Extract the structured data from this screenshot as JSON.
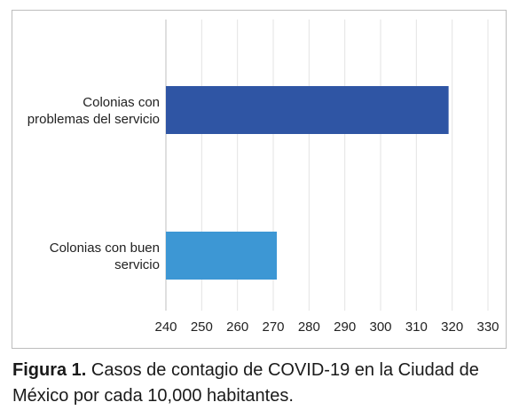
{
  "chart_data": {
    "type": "bar",
    "orientation": "horizontal",
    "categories": [
      [
        "Colonias con",
        "problemas del servicio"
      ],
      [
        "Colonias con buen",
        "servicio"
      ]
    ],
    "values": [
      319,
      271
    ],
    "colors": [
      "#2f55a4",
      "#3d97d4"
    ],
    "xlim": [
      240,
      330
    ],
    "xticks": [
      "240",
      "250",
      "260",
      "270",
      "280",
      "290",
      "300",
      "310",
      "320",
      "330"
    ],
    "grid": true,
    "legend": "none"
  },
  "caption": {
    "label": "Figura 1.",
    "text": " Casos de contagio de COVID-19 en la Ciudad de México por cada 10,000 habitantes."
  }
}
